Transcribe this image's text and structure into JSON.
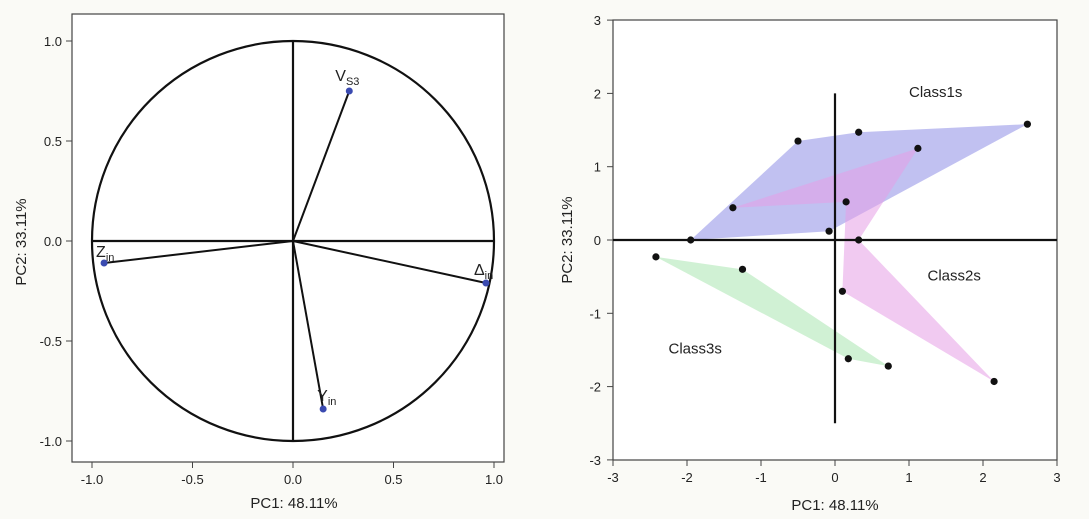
{
  "chart_data": [
    {
      "type": "scatter",
      "subtype": "loading-plot",
      "title": "",
      "xlabel": "PC1: 48.11%",
      "ylabel": "PC2: 33.11%",
      "xlim": [
        -1.1,
        1.0
      ],
      "ylim": [
        -1.1,
        1.0
      ],
      "xticks": [
        "-1.0",
        "-0.5",
        "0.0",
        "0.5",
        "1.0"
      ],
      "yticks": [
        "1.0",
        "0.5",
        "0.0",
        "-0.5",
        "-1.0"
      ],
      "grid": false,
      "unit_circle": true,
      "vectors": [
        {
          "label": "V",
          "sub": "S3",
          "x": 0.28,
          "y": 0.75
        },
        {
          "label": "Z",
          "sub": "in",
          "x": -0.94,
          "y": -0.11
        },
        {
          "label": "Δ",
          "sub": "in",
          "x": 0.96,
          "y": -0.21
        },
        {
          "label": "Y",
          "sub": "in",
          "x": 0.15,
          "y": -0.84
        }
      ]
    },
    {
      "type": "scatter",
      "title": "",
      "xlabel": "PC1: 48.11%",
      "ylabel": "PC2: 33.11%",
      "xlim": [
        -3,
        3
      ],
      "ylim": [
        -3,
        3
      ],
      "xticks": [
        "-3",
        "-2",
        "-1",
        "0",
        "1",
        "2",
        "3"
      ],
      "yticks": [
        "3",
        "2",
        "1",
        "0",
        "-1",
        "-2",
        "-3"
      ],
      "grid": false,
      "points": [
        {
          "x": -0.5,
          "y": 1.35
        },
        {
          "x": 0.32,
          "y": 1.47
        },
        {
          "x": 2.6,
          "y": 1.58
        },
        {
          "x": 1.12,
          "y": 1.25
        },
        {
          "x": -1.38,
          "y": 0.44
        },
        {
          "x": 0.15,
          "y": 0.52
        },
        {
          "x": -0.08,
          "y": 0.12
        },
        {
          "x": -1.95,
          "y": 0.0
        },
        {
          "x": 0.32,
          "y": 0.0
        },
        {
          "x": -2.42,
          "y": -0.23
        },
        {
          "x": -1.25,
          "y": -0.4
        },
        {
          "x": 0.1,
          "y": -0.7
        },
        {
          "x": 0.18,
          "y": -1.62
        },
        {
          "x": 0.72,
          "y": -1.72
        },
        {
          "x": 2.15,
          "y": -1.93
        }
      ],
      "groups": [
        {
          "name": "Class1s",
          "color": "#8e8ee6",
          "hull": [
            [
              -1.95,
              0.0
            ],
            [
              -0.5,
              1.35
            ],
            [
              0.32,
              1.47
            ],
            [
              2.6,
              1.58
            ],
            [
              -0.08,
              0.12
            ]
          ]
        },
        {
          "name": "Class2s",
          "color": "#e59ee6",
          "hull": [
            [
              -1.38,
              0.44
            ],
            [
              1.12,
              1.25
            ],
            [
              0.32,
              0.0
            ],
            [
              2.15,
              -1.93
            ],
            [
              0.1,
              -0.7
            ],
            [
              0.15,
              0.52
            ]
          ]
        },
        {
          "name": "Class3s",
          "color": "#a9e6b0",
          "hull": [
            [
              -2.42,
              -0.23
            ],
            [
              -1.25,
              -0.4
            ],
            [
              0.72,
              -1.72
            ],
            [
              0.18,
              -1.62
            ]
          ]
        }
      ],
      "annotations": [
        "Class1s",
        "Class2s",
        "Class3s"
      ]
    }
  ]
}
